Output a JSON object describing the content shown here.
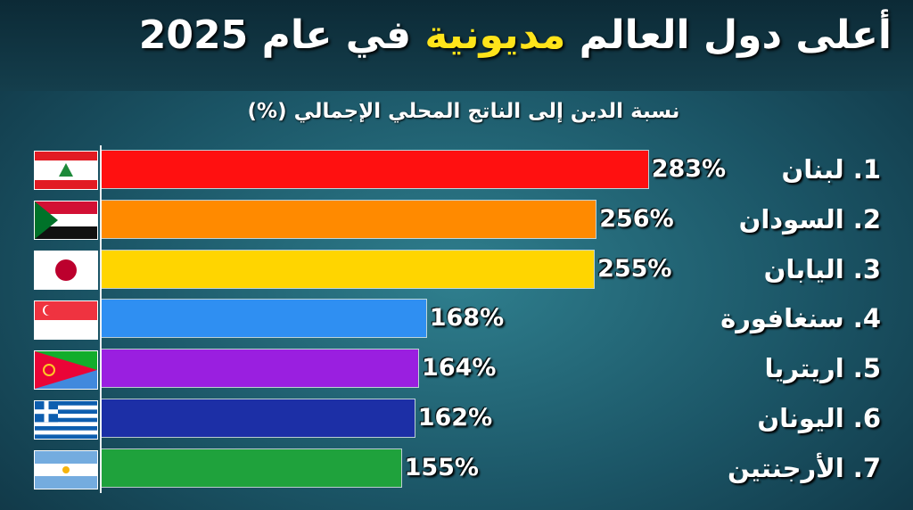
{
  "chart_data": {
    "type": "bar",
    "orientation": "horizontal",
    "title": [
      "أعلى دول العالم",
      "مديونية",
      "في عام 2025"
    ],
    "subtitle": "نسبة الدين إلى الناتج المحلي الإجمالي (%)",
    "categories": [
      "1. لبنان",
      "2. السودان",
      "3. اليابان",
      "4. سنغافورة",
      "5. اريتريا",
      "6. اليونان",
      "7. الأرجنتين"
    ],
    "values": [
      283,
      256,
      255,
      168,
      164,
      162,
      155
    ],
    "value_labels": [
      "283%",
      "256%",
      "255%",
      "168%",
      "164%",
      "162%",
      "155%"
    ],
    "colors": [
      "#ff1010",
      "#ff8a00",
      "#ffd500",
      "#2f8ff2",
      "#9a1fe0",
      "#1c2fa6",
      "#1fa23c"
    ]
  }
}
